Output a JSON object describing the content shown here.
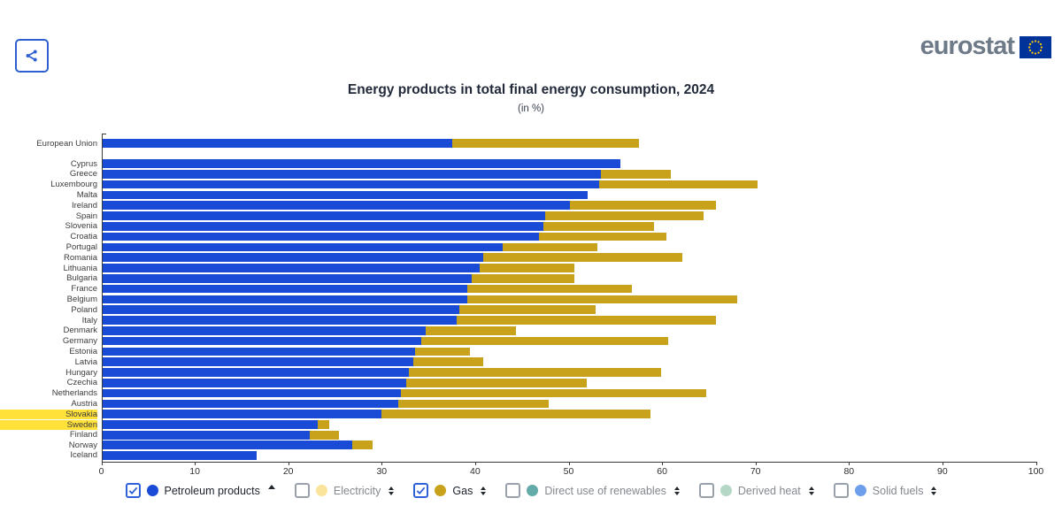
{
  "header": {
    "logo_text": "eurostat",
    "share_icon": "share-icon",
    "flag_icon": "eu-flag-icon"
  },
  "chart_data": {
    "type": "bar",
    "orientation": "horizontal",
    "stacked": true,
    "title": "Energy products in total final energy consumption, 2024",
    "subtitle": "(in %)",
    "unit": "%",
    "xlim": [
      0,
      100
    ],
    "x_ticks": [
      0,
      10,
      20,
      30,
      40,
      50,
      60,
      70,
      80,
      90,
      100
    ],
    "grid": false,
    "series_names": [
      "Petroleum products",
      "Gas"
    ],
    "series_colors": {
      "petroleum": "#1a4bd6",
      "gas": "#c9a21c"
    },
    "highlight_color": "#ffe13a",
    "rows": [
      {
        "name": "European Union",
        "group": "eu",
        "petroleum": 37.5,
        "gas": 20.0,
        "highlighted": false
      },
      {
        "name": "Cyprus",
        "group": "member",
        "petroleum": 55.5,
        "gas": 0.0,
        "highlighted": false
      },
      {
        "name": "Greece",
        "group": "member",
        "petroleum": 53.5,
        "gas": 7.4,
        "highlighted": false
      },
      {
        "name": "Luxembourg",
        "group": "member",
        "petroleum": 53.3,
        "gas": 16.9,
        "highlighted": false
      },
      {
        "name": "Malta",
        "group": "member",
        "petroleum": 52.0,
        "gas": 0.0,
        "highlighted": false
      },
      {
        "name": "Ireland",
        "group": "member",
        "petroleum": 50.1,
        "gas": 15.7,
        "highlighted": false
      },
      {
        "name": "Spain",
        "group": "member",
        "petroleum": 47.5,
        "gas": 16.9,
        "highlighted": false
      },
      {
        "name": "Slovenia",
        "group": "member",
        "petroleum": 47.3,
        "gas": 11.8,
        "highlighted": false
      },
      {
        "name": "Croatia",
        "group": "member",
        "petroleum": 46.8,
        "gas": 13.7,
        "highlighted": false
      },
      {
        "name": "Portugal",
        "group": "member",
        "petroleum": 42.9,
        "gas": 10.2,
        "highlighted": false
      },
      {
        "name": "Romania",
        "group": "member",
        "petroleum": 40.9,
        "gas": 21.3,
        "highlighted": false
      },
      {
        "name": "Lithuania",
        "group": "member",
        "petroleum": 40.5,
        "gas": 10.1,
        "highlighted": false
      },
      {
        "name": "Bulgaria",
        "group": "member",
        "petroleum": 39.6,
        "gas": 11.0,
        "highlighted": false
      },
      {
        "name": "France",
        "group": "member",
        "petroleum": 39.2,
        "gas": 17.6,
        "highlighted": false
      },
      {
        "name": "Belgium",
        "group": "member",
        "petroleum": 39.2,
        "gas": 28.8,
        "highlighted": false
      },
      {
        "name": "Poland",
        "group": "member",
        "petroleum": 38.3,
        "gas": 14.6,
        "highlighted": false
      },
      {
        "name": "Italy",
        "group": "member",
        "petroleum": 38.0,
        "gas": 27.8,
        "highlighted": false
      },
      {
        "name": "Denmark",
        "group": "member",
        "petroleum": 34.7,
        "gas": 9.7,
        "highlighted": false
      },
      {
        "name": "Germany",
        "group": "member",
        "petroleum": 34.2,
        "gas": 26.5,
        "highlighted": false
      },
      {
        "name": "Estonia",
        "group": "member",
        "petroleum": 33.6,
        "gas": 5.8,
        "highlighted": false
      },
      {
        "name": "Latvia",
        "group": "member",
        "petroleum": 33.4,
        "gas": 7.5,
        "highlighted": false
      },
      {
        "name": "Hungary",
        "group": "member",
        "petroleum": 32.9,
        "gas": 27.0,
        "highlighted": false
      },
      {
        "name": "Czechia",
        "group": "member",
        "petroleum": 32.6,
        "gas": 19.3,
        "highlighted": false
      },
      {
        "name": "Netherlands",
        "group": "member",
        "petroleum": 32.1,
        "gas": 32.6,
        "highlighted": false
      },
      {
        "name": "Austria",
        "group": "member",
        "petroleum": 31.8,
        "gas": 16.1,
        "highlighted": false
      },
      {
        "name": "Slovakia",
        "group": "member",
        "petroleum": 30.0,
        "gas": 28.8,
        "highlighted": true
      },
      {
        "name": "Sweden",
        "group": "member",
        "petroleum": 23.2,
        "gas": 1.2,
        "highlighted": true
      },
      {
        "name": "Finland",
        "group": "member",
        "petroleum": 22.3,
        "gas": 3.1,
        "highlighted": false
      },
      {
        "name": "Norway",
        "group": "efta",
        "petroleum": 26.8,
        "gas": 2.2,
        "highlighted": false
      },
      {
        "name": "Iceland",
        "group": "efta",
        "petroleum": 16.6,
        "gas": 0.0,
        "highlighted": false
      }
    ]
  },
  "legend": {
    "items": [
      {
        "label": "Petroleum products",
        "color": "#1a4bd6",
        "checked": true,
        "sort": "asc"
      },
      {
        "label": "Electricity",
        "color": "#fae39b",
        "checked": false,
        "sort": "both"
      },
      {
        "label": "Gas",
        "color": "#c9a21c",
        "checked": true,
        "sort": "both"
      },
      {
        "label": "Direct use of renewables",
        "color": "#63aba8",
        "checked": false,
        "sort": "both"
      },
      {
        "label": "Derived heat",
        "color": "#b5d8c6",
        "checked": false,
        "sort": "both"
      },
      {
        "label": "Solid fuels",
        "color": "#6d9eeb",
        "checked": false,
        "sort": "both"
      }
    ]
  }
}
